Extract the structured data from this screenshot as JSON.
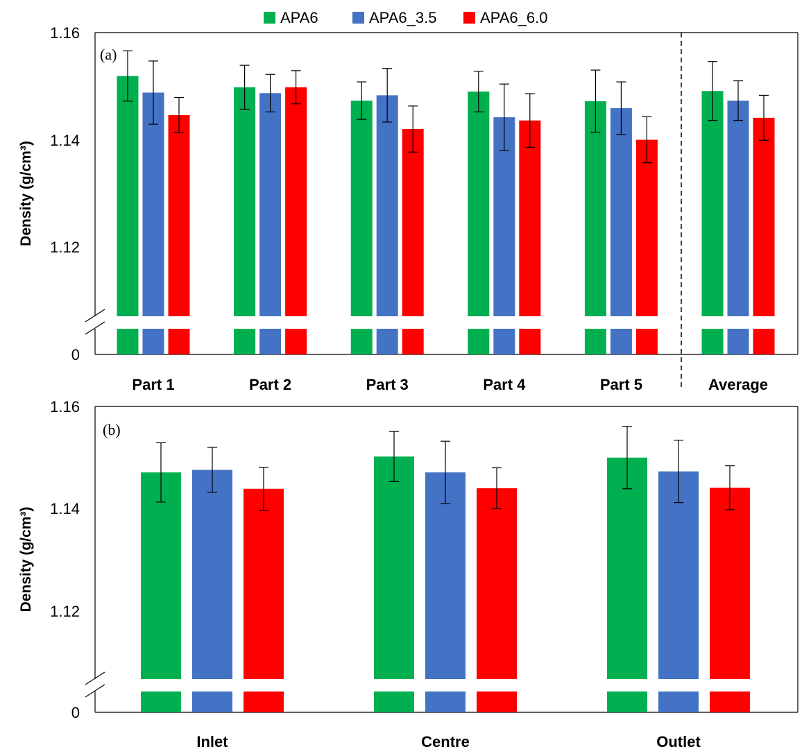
{
  "colors": {
    "APA6": "#00b050",
    "APA6_3.5": "#4472c4",
    "APA6_6.0": "#ff0000"
  },
  "legend": [
    {
      "name": "APA6",
      "color": "#00b050"
    },
    {
      "name": "APA6_3.5",
      "color": "#4472c4"
    },
    {
      "name": "APA6_6.0",
      "color": "#ff0000"
    }
  ],
  "chart_data": [
    {
      "type": "bar",
      "panel_label": "(a)",
      "ylabel": "Density (g/cm³)",
      "y_ticks": [
        "0",
        "1.12",
        "1.14",
        "1.16"
      ],
      "ylim": [
        1.107,
        1.16
      ],
      "axis_break": true,
      "grid": false,
      "legend_placement": "top-center",
      "categories": [
        "Part 1",
        "Part 2",
        "Part 3",
        "Part 4",
        "Part 5",
        "Average"
      ],
      "separator_before": "Average",
      "series": [
        {
          "name": "APA6",
          "values": [
            1.1519,
            1.1498,
            1.1473,
            1.149,
            1.1472,
            1.1491
          ],
          "errors": [
            0.0047,
            0.0041,
            0.0035,
            0.0038,
            0.0058,
            0.0055
          ]
        },
        {
          "name": "APA6_3.5",
          "values": [
            1.1488,
            1.1487,
            1.1483,
            1.1442,
            1.1459,
            1.1473
          ],
          "errors": [
            0.0059,
            0.0035,
            0.005,
            0.0062,
            0.0049,
            0.0037
          ]
        },
        {
          "name": "APA6_6.0",
          "values": [
            1.1446,
            1.1498,
            1.142,
            1.1436,
            1.14,
            1.1441
          ],
          "errors": [
            0.0033,
            0.0031,
            0.0043,
            0.005,
            0.0043,
            0.0042
          ]
        }
      ]
    },
    {
      "type": "bar",
      "panel_label": "(b)",
      "ylabel": "Density (g/cm³)",
      "y_ticks": [
        "0",
        "1.12",
        "1.14",
        "1.16"
      ],
      "ylim": [
        1.107,
        1.16
      ],
      "axis_break": true,
      "grid": false,
      "categories": [
        "Inlet",
        "Centre",
        "Outlet"
      ],
      "series": [
        {
          "name": "APA6",
          "values": [
            1.1471,
            1.1502,
            1.15
          ],
          "errors": [
            0.0058,
            0.0049,
            0.0061
          ]
        },
        {
          "name": "APA6_3.5",
          "values": [
            1.1476,
            1.1471,
            1.1473
          ],
          "errors": [
            0.0044,
            0.0061,
            0.0061
          ]
        },
        {
          "name": "APA6_6.0",
          "values": [
            1.1439,
            1.144,
            1.1441
          ],
          "errors": [
            0.0042,
            0.004,
            0.0043
          ]
        }
      ]
    }
  ]
}
